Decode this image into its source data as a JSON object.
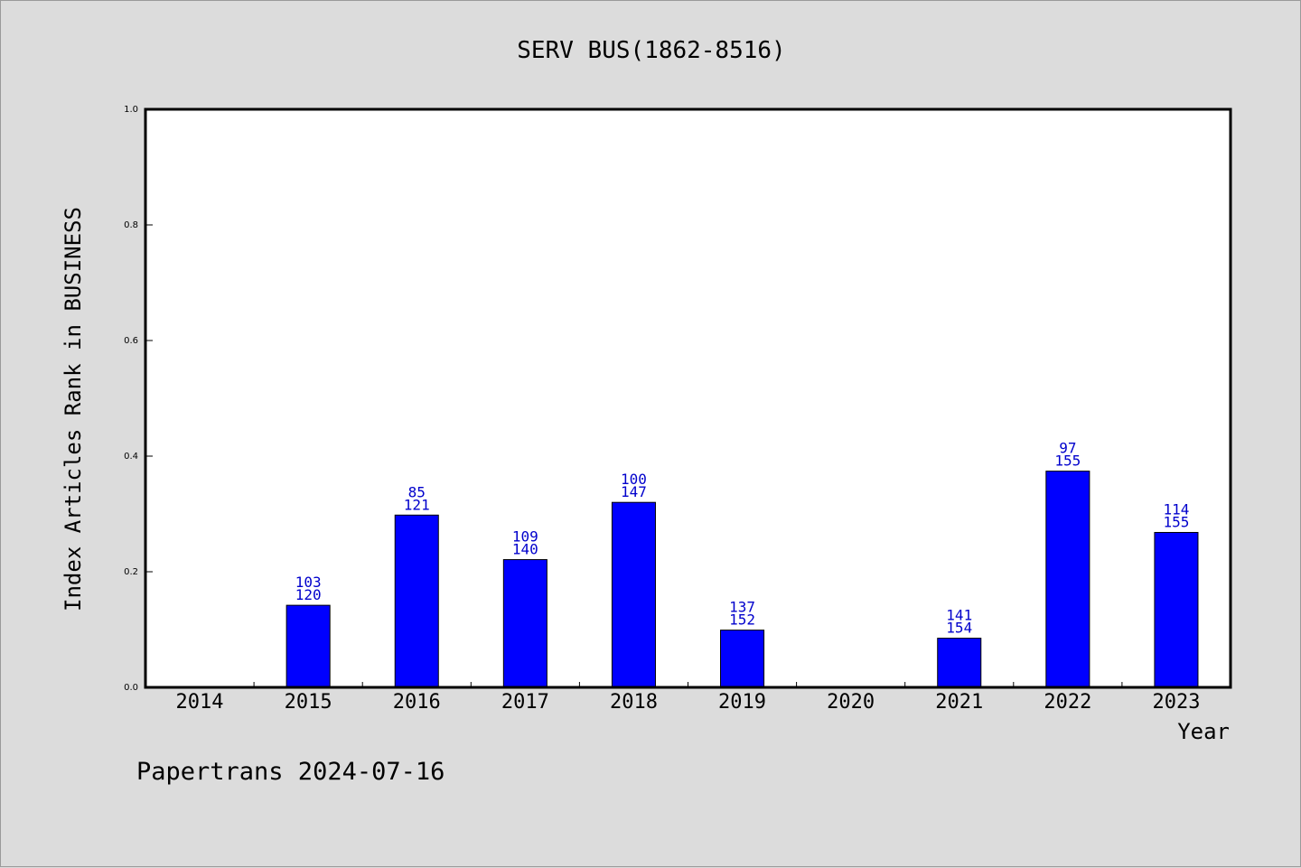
{
  "chart_data": {
    "type": "bar",
    "title": "SERV BUS(1862-8516)",
    "xlabel": "Year",
    "ylabel": "Index Articles Rank in BUSINESS",
    "ylim": [
      0,
      1.0
    ],
    "yticks": [
      "0.0",
      "0.2",
      "0.4",
      "0.6",
      "0.8",
      "1.0"
    ],
    "grid": false,
    "bar_color": "#0000ff",
    "label_color": "#0000cc",
    "categories": [
      "2014",
      "2015",
      "2016",
      "2017",
      "2018",
      "2019",
      "2020",
      "2021",
      "2022",
      "2023"
    ],
    "values": [
      0,
      0.142,
      0.298,
      0.221,
      0.32,
      0.099,
      0,
      0.085,
      0.374,
      0.268
    ],
    "bar_labels": [
      null,
      {
        "top": "103",
        "bottom": "120"
      },
      {
        "top": "85",
        "bottom": "121"
      },
      {
        "top": "109",
        "bottom": "140"
      },
      {
        "top": "100",
        "bottom": "147"
      },
      {
        "top": "137",
        "bottom": "152"
      },
      null,
      {
        "top": "141",
        "bottom": "154"
      },
      {
        "top": "97",
        "bottom": "155"
      },
      {
        "top": "114",
        "bottom": "155"
      }
    ]
  },
  "footer": {
    "text": "Papertrans 2024-07-16"
  }
}
